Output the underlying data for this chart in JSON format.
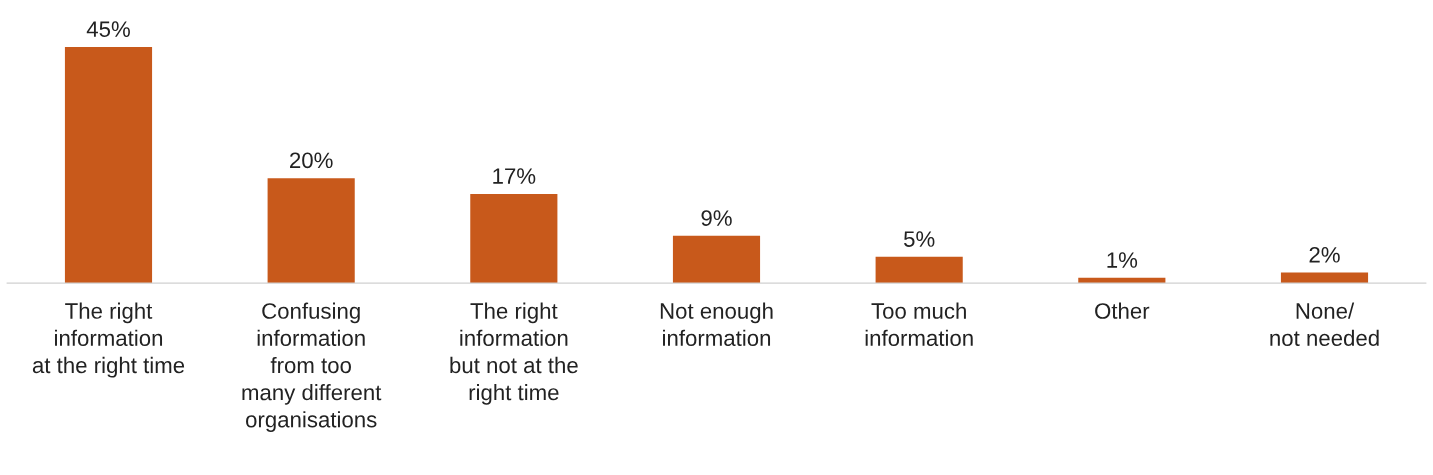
{
  "chart_data": {
    "type": "bar",
    "categories": [
      "The right\ninformation\nat the right time",
      "Confusing\ninformation\nfrom too\nmany different\norganisations",
      "The right\ninformation\nbut not at the\nright time",
      "Not enough\ninformation",
      "Too much\ninformation",
      "Other",
      "None/\nnot needed"
    ],
    "values": [
      45,
      20,
      17,
      9,
      5,
      1,
      2
    ],
    "value_labels": [
      "45%",
      "20%",
      "17%",
      "9%",
      "5%",
      "1%",
      "2%"
    ],
    "color": "#c8591b",
    "tick_labels": "x",
    "grid": false,
    "legend": false
  }
}
